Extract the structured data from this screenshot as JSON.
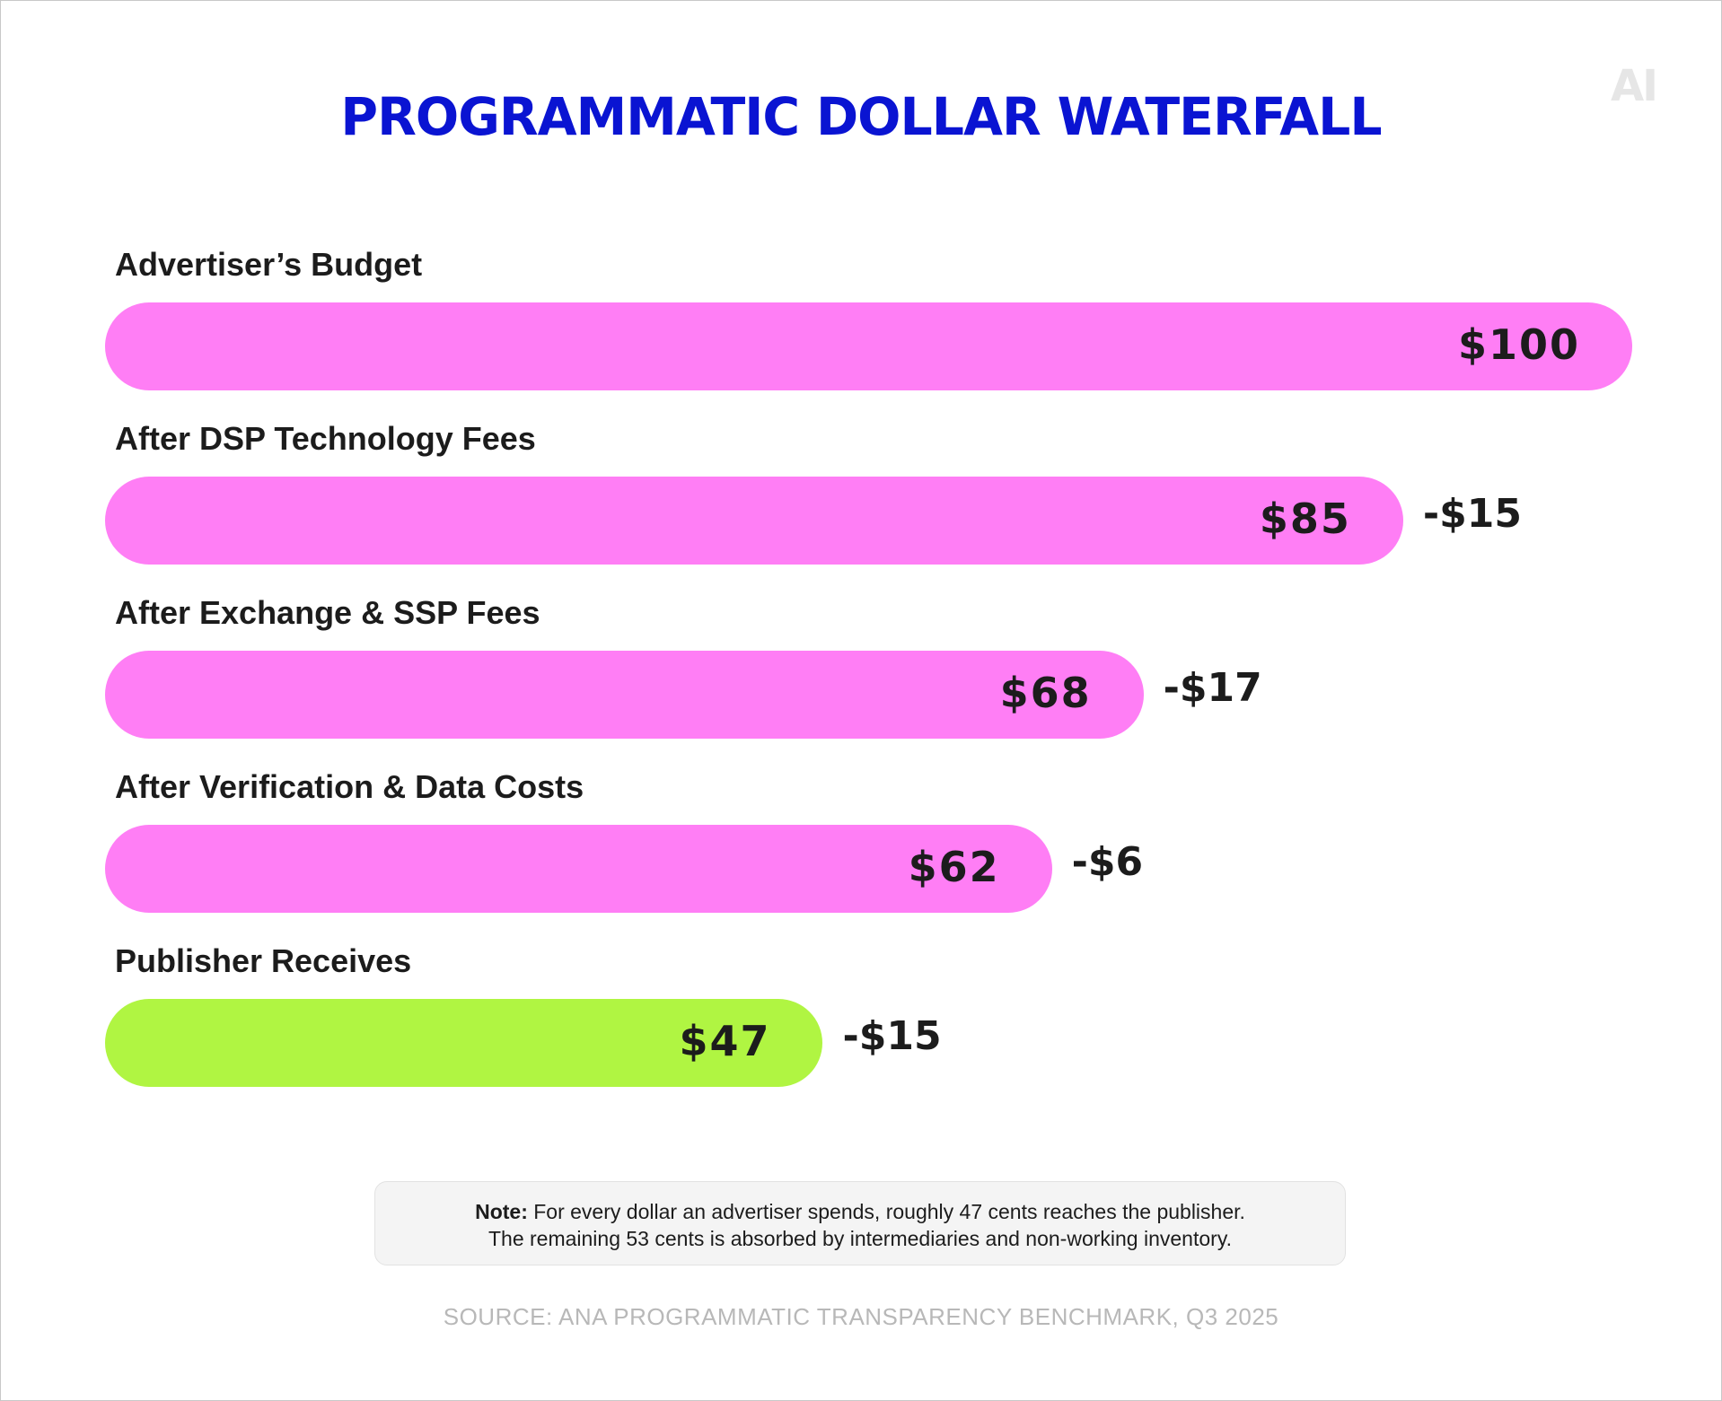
{
  "logo": "AI",
  "colors": {
    "title": "#0a14d2",
    "bar_pink": "#ff7ef5",
    "bar_green": "#b0f542",
    "text": "#1c1c1c",
    "source": "#b8b8b8"
  },
  "chart_data": {
    "type": "bar",
    "orientation": "horizontal",
    "title": "PROGRAMMATIC DOLLAR WATERFALL",
    "xlim": [
      0,
      100
    ],
    "grid": false,
    "categories": [
      "Advertiser’s Budget",
      "After DSP Technology Fees",
      "After Exchange & SSP Fees",
      "After Verification & Data Costs",
      "Publisher Receives"
    ],
    "values": [
      100,
      85,
      68,
      62,
      47
    ],
    "value_labels": [
      "$100",
      "$85",
      "$68",
      "$62",
      "$47"
    ],
    "deltas": [
      "",
      "-$15",
      "-$17",
      "-$6",
      "-$15"
    ],
    "bar_colors": [
      "#ff7ef5",
      "#ff7ef5",
      "#ff7ef5",
      "#ff7ef5",
      "#b0f542"
    ]
  },
  "note": {
    "label": "Note:",
    "line1": "For every dollar an advertiser spends, roughly 47 cents reaches the publisher.",
    "line2": "The remaining 53 cents is absorbed by intermediaries and non-working inventory."
  },
  "source": "SOURCE: ANA PROGRAMMATIC TRANSPARENCY BENCHMARK, Q3 2025"
}
